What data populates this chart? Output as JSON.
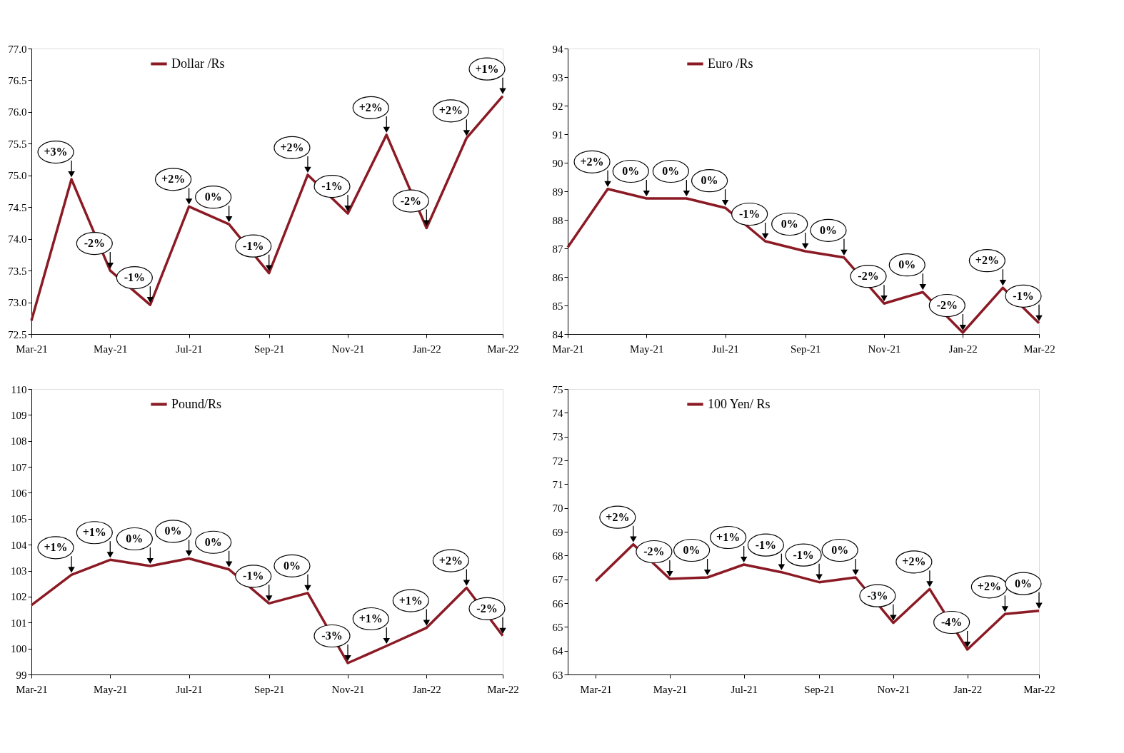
{
  "chart_data": [
    {
      "type": "line",
      "x": [
        "2021-03",
        "2021-04",
        "2021-05",
        "2021-06",
        "2021-07",
        "2021-08",
        "2021-09",
        "2021-10",
        "2021-11",
        "2021-12",
        "2022-01",
        "2022-02",
        "2022-03"
      ],
      "series": [
        {
          "name": "Dollar /Rs",
          "color": "#8b1a24",
          "values": [
            72.71,
            74.94,
            73.5,
            72.96,
            74.51,
            74.23,
            73.46,
            75.01,
            74.4,
            75.64,
            74.17,
            75.59,
            76.25
          ]
        }
      ],
      "xlim": [
        "2021-03",
        "2022-03"
      ],
      "xticks": [
        {
          "value": "2021-03",
          "label": "Mar-21"
        },
        {
          "value": "2021-05",
          "label": "May-21"
        },
        {
          "value": "2021-07",
          "label": "Jul-21"
        },
        {
          "value": "2021-09",
          "label": "Sep-21"
        },
        {
          "value": "2021-11",
          "label": "Nov-21"
        },
        {
          "value": "2022-01",
          "label": "Jan-22"
        },
        {
          "value": "2022-03",
          "label": "Mar-22"
        }
      ],
      "ylim": [
        72.5,
        77.0
      ],
      "yticks": [
        72.5,
        {
          "value": 73,
          "label": "73.0"
        },
        73.5,
        {
          "value": 74,
          "label": "74.0"
        },
        74.5,
        {
          "value": 75,
          "label": "75.0"
        },
        75.5,
        {
          "value": 76,
          "label": "76.0"
        },
        76.5,
        {
          "value": 77,
          "label": "77.0"
        }
      ],
      "annotations": [
        {
          "text": "+3%",
          "x": "2021-04",
          "y": 74.94
        },
        {
          "text": "-2%",
          "x": "2021-05",
          "y": 73.5
        },
        {
          "text": "-1%",
          "x": "2021-06",
          "y": 72.96
        },
        {
          "text": "+2%",
          "x": "2021-07",
          "y": 74.51
        },
        {
          "text": "0%",
          "x": "2021-08",
          "y": 74.23
        },
        {
          "text": "-1%",
          "x": "2021-09",
          "y": 73.46
        },
        {
          "text": "+2%",
          "x": "2021-10",
          "y": 75.01
        },
        {
          "text": "-1%",
          "x": "2021-11",
          "y": 74.4
        },
        {
          "text": "+2%",
          "x": "2021-12",
          "y": 75.64
        },
        {
          "text": "-2%",
          "x": "2022-01",
          "y": 74.17
        },
        {
          "text": "+2%",
          "x": "2022-02",
          "y": 75.59
        },
        {
          "text": "+1%",
          "x": "2022-03",
          "y": 76.25
        }
      ],
      "legend": "top",
      "grid": false
    },
    {
      "type": "line",
      "x": [
        "2021-03",
        "2021-04",
        "2021-05",
        "2021-06",
        "2021-07",
        "2021-08",
        "2021-09",
        "2021-10",
        "2021-11",
        "2021-12",
        "2022-01",
        "2022-02",
        "2022-03"
      ],
      "series": [
        {
          "name": "Euro /Rs",
          "color": "#8b1a24",
          "values": [
            87.04,
            89.08,
            88.75,
            88.75,
            88.42,
            87.25,
            86.9,
            86.68,
            85.07,
            85.47,
            84.05,
            85.62,
            84.38
          ]
        }
      ],
      "xlim": [
        "2021-03",
        "2022-03"
      ],
      "xticks": [
        {
          "value": "2021-03",
          "label": "Mar-21"
        },
        {
          "value": "2021-05",
          "label": "May-21"
        },
        {
          "value": "2021-07",
          "label": "Jul-21"
        },
        {
          "value": "2021-09",
          "label": "Sep-21"
        },
        {
          "value": "2021-11",
          "label": "Nov-21"
        },
        {
          "value": "2022-01",
          "label": "Jan-22"
        },
        {
          "value": "2022-03",
          "label": "Mar-22"
        }
      ],
      "ylim": [
        84,
        94
      ],
      "yticks": [
        84,
        85,
        86,
        87,
        88,
        89,
        90,
        91,
        92,
        93,
        94
      ],
      "annotations": [
        {
          "text": "+2%",
          "x": "2021-04",
          "y": 89.08
        },
        {
          "text": "0%",
          "x": "2021-05",
          "y": 88.75
        },
        {
          "text": "0%",
          "x": "2021-06",
          "y": 88.75
        },
        {
          "text": "0%",
          "x": "2021-07",
          "y": 88.42
        },
        {
          "text": "-1%",
          "x": "2021-08",
          "y": 87.25
        },
        {
          "text": "0%",
          "x": "2021-09",
          "y": 86.9
        },
        {
          "text": "0%",
          "x": "2021-10",
          "y": 86.68
        },
        {
          "text": "-2%",
          "x": "2021-11",
          "y": 85.07
        },
        {
          "text": "0%",
          "x": "2021-12",
          "y": 85.47
        },
        {
          "text": "-2%",
          "x": "2022-01",
          "y": 84.05
        },
        {
          "text": "+2%",
          "x": "2022-02",
          "y": 85.62
        },
        {
          "text": "-1%",
          "x": "2022-03",
          "y": 84.38
        }
      ],
      "legend": "top",
      "grid": false
    },
    {
      "type": "line",
      "x": [
        "2021-03",
        "2021-04",
        "2021-05",
        "2021-06",
        "2021-07",
        "2021-08",
        "2021-09",
        "2021-10",
        "2021-11",
        "2021-12",
        "2022-01",
        "2022-02",
        "2022-03"
      ],
      "series": [
        {
          "name": "Pound/Rs",
          "color": "#8b1a24",
          "values": [
            101.67,
            102.84,
            103.42,
            103.18,
            103.47,
            103.05,
            101.74,
            102.14,
            99.44,
            100.1,
            100.8,
            102.34,
            100.49
          ]
        }
      ],
      "xlim": [
        "2021-03",
        "2022-03"
      ],
      "xticks": [
        {
          "value": "2021-03",
          "label": "Mar-21"
        },
        {
          "value": "2021-05",
          "label": "May-21"
        },
        {
          "value": "2021-07",
          "label": "Jul-21"
        },
        {
          "value": "2021-09",
          "label": "Sep-21"
        },
        {
          "value": "2021-11",
          "label": "Nov-21"
        },
        {
          "value": "2022-01",
          "label": "Jan-22"
        },
        {
          "value": "2022-03",
          "label": "Mar-22"
        }
      ],
      "ylim": [
        99,
        110
      ],
      "yticks": [
        99,
        100,
        101,
        102,
        103,
        104,
        105,
        106,
        107,
        108,
        109,
        110
      ],
      "annotations": [
        {
          "text": "+1%",
          "x": "2021-04",
          "y": 102.84
        },
        {
          "text": "+1%",
          "x": "2021-05",
          "y": 103.42
        },
        {
          "text": "0%",
          "x": "2021-06",
          "y": 103.18
        },
        {
          "text": "0%",
          "x": "2021-07",
          "y": 103.47
        },
        {
          "text": "0%",
          "x": "2021-08",
          "y": 103.05
        },
        {
          "text": "-1%",
          "x": "2021-09",
          "y": 101.74
        },
        {
          "text": "0%",
          "x": "2021-10",
          "y": 102.14
        },
        {
          "text": "-3%",
          "x": "2021-11",
          "y": 99.44
        },
        {
          "text": "+1%",
          "x": "2021-12",
          "y": 100.1
        },
        {
          "text": "+1%",
          "x": "2022-01",
          "y": 100.8
        },
        {
          "text": "+2%",
          "x": "2022-02",
          "y": 102.34
        },
        {
          "text": "-2%",
          "x": "2022-03",
          "y": 100.49
        }
      ],
      "legend": "top",
      "grid": false
    },
    {
      "type": "line",
      "x": [
        "2021-03",
        "2021-04",
        "2021-05",
        "2021-06",
        "2021-07",
        "2021-08",
        "2021-09",
        "2021-10",
        "2021-11",
        "2021-12",
        "2022-01",
        "2022-02",
        "2022-03"
      ],
      "series": [
        {
          "name": "100 Yen/ Rs",
          "color": "#8b1a24",
          "values": [
            66.93,
            68.47,
            67.02,
            67.08,
            67.62,
            67.3,
            66.88,
            67.08,
            65.17,
            66.59,
            64.05,
            65.54,
            65.68
          ]
        }
      ],
      "xlim": [
        "2021-02-06",
        "2022-03"
      ],
      "xticks": [
        {
          "value": "2021-03",
          "label": "Mar-21"
        },
        {
          "value": "2021-05",
          "label": "May-21"
        },
        {
          "value": "2021-07",
          "label": "Jul-21"
        },
        {
          "value": "2021-09",
          "label": "Sep-21"
        },
        {
          "value": "2021-11",
          "label": "Nov-21"
        },
        {
          "value": "2022-01",
          "label": "Jan-22"
        },
        {
          "value": "2022-03",
          "label": "Mar-22"
        }
      ],
      "ylim": [
        63,
        75
      ],
      "yticks": [
        63,
        64,
        65,
        66,
        67,
        68,
        69,
        70,
        71,
        72,
        73,
        74,
        75
      ],
      "annotations": [
        {
          "text": "+2%",
          "x": "2021-04",
          "y": 68.47
        },
        {
          "text": "-2%",
          "x": "2021-05",
          "y": 67.02
        },
        {
          "text": "0%",
          "x": "2021-06",
          "y": 67.08
        },
        {
          "text": "+1%",
          "x": "2021-07",
          "y": 67.62
        },
        {
          "text": "-1%",
          "x": "2021-08",
          "y": 67.3
        },
        {
          "text": "-1%",
          "x": "2021-09",
          "y": 66.88
        },
        {
          "text": "0%",
          "x": "2021-10",
          "y": 67.08
        },
        {
          "text": "-3%",
          "x": "2021-11",
          "y": 65.17
        },
        {
          "text": "+2%",
          "x": "2021-12",
          "y": 66.59
        },
        {
          "text": "-4%",
          "x": "2022-01",
          "y": 64.05
        },
        {
          "text": "+2%",
          "x": "2022-02",
          "y": 65.54
        },
        {
          "text": "0%",
          "x": "2022-03",
          "y": 65.68
        }
      ],
      "legend": "top",
      "grid": false
    }
  ]
}
